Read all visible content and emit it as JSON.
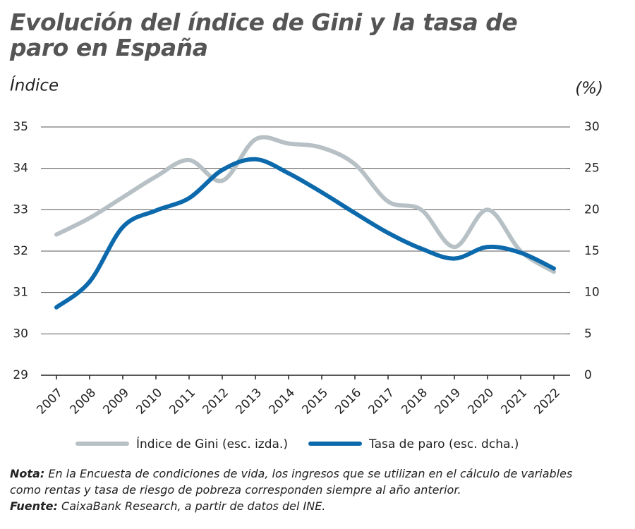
{
  "chart_data": {
    "type": "line",
    "title": "Evolución del  índice de Gini y la tasa de paro en España",
    "y_label": "Índice",
    "y2_label": "(%)",
    "categories": [
      "2007",
      "2008",
      "2009",
      "2010",
      "2011",
      "2012",
      "2013",
      "2014",
      "2015",
      "2016",
      "2017",
      "2018",
      "2019",
      "2020",
      "2021",
      "2022"
    ],
    "series": [
      {
        "name": "Índice de Gini (esc. izda.)",
        "color": "#b7c1c5",
        "values": [
          32.4,
          32.8,
          33.3,
          33.8,
          34.2,
          33.7,
          34.7,
          34.6,
          34.5,
          34.1,
          33.2,
          33.0,
          32.1,
          33.0,
          32.0,
          31.5
        ]
      },
      {
        "name": "Tasa de paro (esc. dcha.)",
        "color": "#0b69ac",
        "axis": "y2",
        "values": [
          8.2,
          11.3,
          17.9,
          19.9,
          21.4,
          24.8,
          26.1,
          24.4,
          22.1,
          19.6,
          17.2,
          15.3,
          14.1,
          15.5,
          14.8,
          12.9
        ]
      }
    ],
    "ylim": [
      29,
      35
    ],
    "yticks": [
      29,
      30,
      31,
      32,
      33,
      34,
      35
    ],
    "y2lim": [
      0,
      30
    ],
    "y2ticks": [
      0,
      5,
      10,
      15,
      20,
      25,
      30
    ],
    "grid": true
  },
  "notes": [
    {
      "label": "Nota:",
      "text": "En la Encuesta de condiciones de vida, los ingresos que se utilizan en el cálculo de variables como rentas y tasa de riesgo de pobreza corresponden siempre al año anterior."
    },
    {
      "label": "Fuente:",
      "text": "CaixaBank Research, a partir de datos del INE."
    }
  ]
}
